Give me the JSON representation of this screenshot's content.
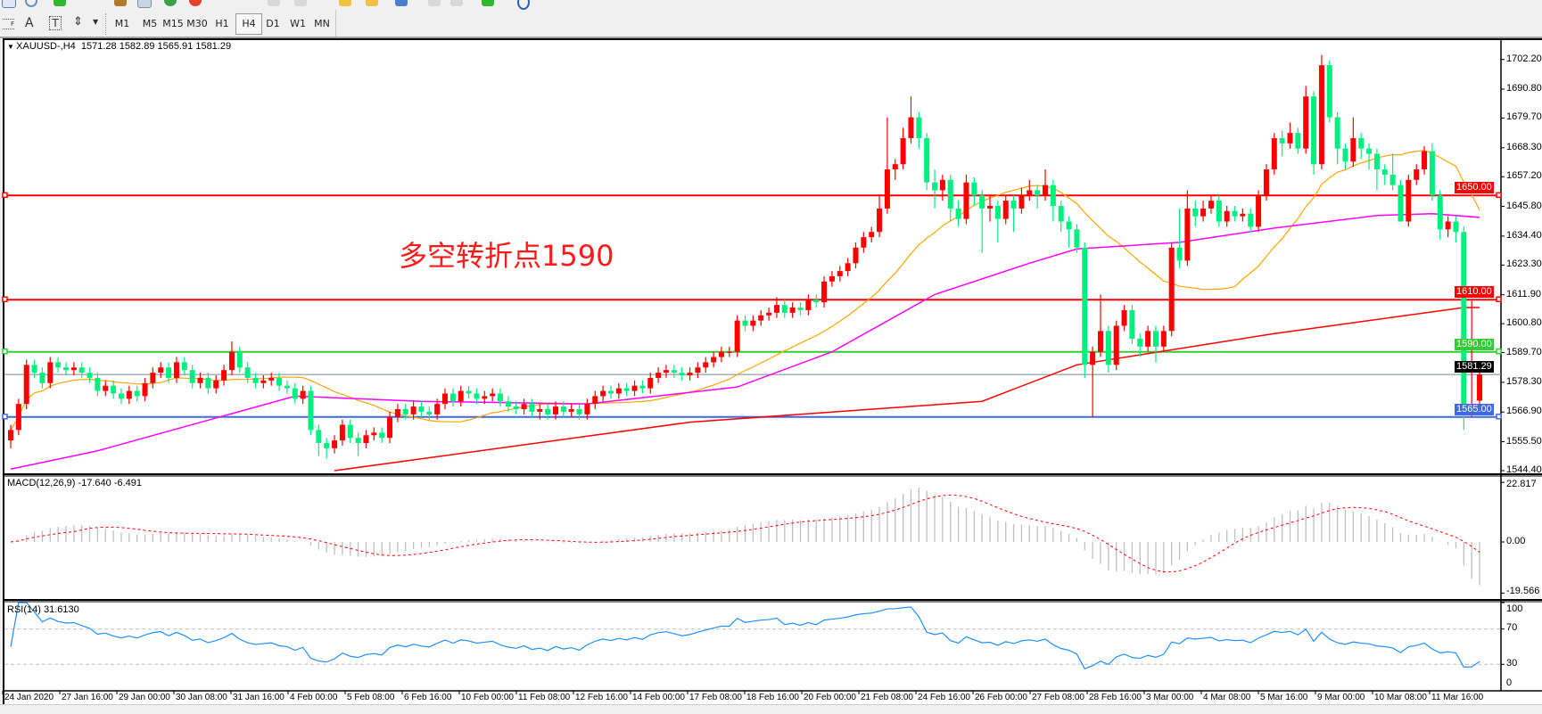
{
  "toolbar": {
    "timeframes": [
      "M1",
      "M5",
      "M15",
      "M30",
      "H1",
      "H4",
      "D1",
      "W1",
      "MN"
    ],
    "active_timeframe": "H4",
    "tools": [
      "fibo-icon",
      "text-icon",
      "text-label-icon",
      "arrows-icon"
    ],
    "tool_labels": {
      "text": "A",
      "label": "T"
    }
  },
  "chart": {
    "title": "XAUUSD-,H4  1571.28 1582.89 1565.91 1581.29",
    "annotation": "多空转折点1590",
    "colors": {
      "bull": "#ff0000",
      "bear": "#00f080",
      "ma_fast": "#ffa500",
      "ma_mid": "#ff00ff",
      "ma_slow": "#ff0000",
      "rsi": "#1e90ff",
      "macd_hist": "#c0c0c0",
      "macd_signal": "#ff0000"
    }
  },
  "chart_data": [
    {
      "type": "candlestick",
      "title": "XAUUSD-,H4",
      "ylim": [
        1544.4,
        1702.2
      ],
      "y_ticks": [
        "1702.20",
        "1690.80",
        "1679.70",
        "1668.30",
        "1657.20",
        "1645.80",
        "1634.40",
        "1623.30",
        "1611.90",
        "1600.80",
        "1589.70",
        "1578.30",
        "1566.90",
        "1555.50",
        "1544.40"
      ],
      "x_ticks": [
        "24 Jan 2020",
        "27 Jan 16:00",
        "29 Jan 00:00",
        "30 Jan 08:00",
        "31 Jan 16:00",
        "4 Feb 00:00",
        "5 Feb 08:00",
        "6 Feb 16:00",
        "10 Feb 00:00",
        "11 Feb 08:00",
        "12 Feb 16:00",
        "14 Feb 00:00",
        "17 Feb 08:00",
        "18 Feb 16:00",
        "20 Feb 00:00",
        "21 Feb 08:00",
        "24 Feb 16:00",
        "26 Feb 00:00",
        "27 Feb 08:00",
        "28 Feb 16:00",
        "3 Mar 00:00",
        "4 Mar 08:00",
        "5 Mar 16:00",
        "9 Mar 00:00",
        "10 Mar 08:00",
        "11 Mar 16:00"
      ],
      "last_price": {
        "value": 1581.29,
        "label": "1581.29"
      },
      "levels": [
        {
          "value": 1650,
          "label": "1650.00",
          "color": "#ff0000"
        },
        {
          "value": 1610,
          "label": "1610.00",
          "color": "#ff0000"
        },
        {
          "value": 1590,
          "label": "1590.00",
          "color": "#32cd32"
        },
        {
          "value": 1565,
          "label": "1565.00",
          "color": "#4169e1"
        }
      ],
      "ohlc": [
        [
          1556,
          1562,
          1553,
          1560
        ],
        [
          1560,
          1572,
          1558,
          1570
        ],
        [
          1570,
          1587,
          1568,
          1585
        ],
        [
          1585,
          1587,
          1580,
          1582
        ],
        [
          1582,
          1584,
          1576,
          1578
        ],
        [
          1578,
          1588,
          1576,
          1586
        ],
        [
          1586,
          1588,
          1582,
          1584
        ],
        [
          1584,
          1586,
          1581,
          1583
        ],
        [
          1583,
          1586,
          1581,
          1584
        ],
        [
          1584,
          1586,
          1580,
          1582
        ],
        [
          1582,
          1584,
          1578,
          1580
        ],
        [
          1580,
          1582,
          1573,
          1575
        ],
        [
          1575,
          1579,
          1573,
          1577
        ],
        [
          1577,
          1579,
          1572,
          1574
        ],
        [
          1574,
          1576,
          1570,
          1572
        ],
        [
          1572,
          1577,
          1570,
          1575
        ],
        [
          1575,
          1577,
          1571,
          1573
        ],
        [
          1573,
          1580,
          1571,
          1578
        ],
        [
          1578,
          1584,
          1576,
          1582
        ],
        [
          1582,
          1586,
          1580,
          1584
        ],
        [
          1584,
          1586,
          1578,
          1580
        ],
        [
          1580,
          1588,
          1578,
          1586
        ],
        [
          1586,
          1588,
          1581,
          1583
        ],
        [
          1583,
          1585,
          1576,
          1578
        ],
        [
          1578,
          1582,
          1576,
          1580
        ],
        [
          1580,
          1582,
          1574,
          1576
        ],
        [
          1576,
          1581,
          1574,
          1579
        ],
        [
          1579,
          1585,
          1577,
          1583
        ],
        [
          1583,
          1594,
          1581,
          1590
        ],
        [
          1590,
          1592,
          1582,
          1584
        ],
        [
          1584,
          1586,
          1578,
          1580
        ],
        [
          1580,
          1582,
          1576,
          1578
        ],
        [
          1578,
          1581,
          1576,
          1579
        ],
        [
          1579,
          1582,
          1577,
          1580
        ],
        [
          1580,
          1582,
          1575,
          1577
        ],
        [
          1577,
          1579,
          1574,
          1576
        ],
        [
          1576,
          1578,
          1570,
          1572
        ],
        [
          1572,
          1577,
          1570,
          1575
        ],
        [
          1575,
          1577,
          1558,
          1560
        ],
        [
          1560,
          1562,
          1550,
          1555
        ],
        [
          1555,
          1557,
          1549,
          1553
        ],
        [
          1553,
          1558,
          1551,
          1556
        ],
        [
          1556,
          1564,
          1554,
          1562
        ],
        [
          1562,
          1564,
          1555,
          1557
        ],
        [
          1557,
          1559,
          1550,
          1555
        ],
        [
          1555,
          1560,
          1553,
          1558
        ],
        [
          1558,
          1561,
          1556,
          1559
        ],
        [
          1559,
          1561,
          1555,
          1557
        ],
        [
          1557,
          1567,
          1555,
          1565
        ],
        [
          1565,
          1570,
          1563,
          1568
        ],
        [
          1568,
          1570,
          1564,
          1566
        ],
        [
          1566,
          1571,
          1564,
          1569
        ],
        [
          1569,
          1571,
          1565,
          1567
        ],
        [
          1567,
          1569,
          1564,
          1566
        ],
        [
          1566,
          1572,
          1564,
          1570
        ],
        [
          1570,
          1576,
          1568,
          1574
        ],
        [
          1574,
          1576,
          1569,
          1571
        ],
        [
          1571,
          1577,
          1569,
          1575
        ],
        [
          1575,
          1577,
          1572,
          1574
        ],
        [
          1574,
          1576,
          1570,
          1572
        ],
        [
          1572,
          1575,
          1570,
          1573
        ],
        [
          1573,
          1576,
          1571,
          1574
        ],
        [
          1574,
          1576,
          1569,
          1571
        ],
        [
          1571,
          1573,
          1567,
          1569
        ],
        [
          1569,
          1571,
          1566,
          1568
        ],
        [
          1568,
          1572,
          1566,
          1570
        ],
        [
          1570,
          1572,
          1565,
          1567
        ],
        [
          1567,
          1570,
          1564,
          1568
        ],
        [
          1568,
          1570,
          1564,
          1566
        ],
        [
          1566,
          1571,
          1564,
          1569
        ],
        [
          1569,
          1571,
          1565,
          1567
        ],
        [
          1567,
          1570,
          1565,
          1568
        ],
        [
          1568,
          1570,
          1564,
          1566
        ],
        [
          1566,
          1572,
          1564,
          1570
        ],
        [
          1570,
          1575,
          1568,
          1573
        ],
        [
          1573,
          1577,
          1571,
          1575
        ],
        [
          1575,
          1577,
          1572,
          1574
        ],
        [
          1574,
          1578,
          1572,
          1576
        ],
        [
          1576,
          1578,
          1573,
          1575
        ],
        [
          1575,
          1579,
          1573,
          1577
        ],
        [
          1577,
          1579,
          1574,
          1576
        ],
        [
          1576,
          1582,
          1574,
          1580
        ],
        [
          1580,
          1584,
          1578,
          1582
        ],
        [
          1582,
          1585,
          1580,
          1583
        ],
        [
          1583,
          1585,
          1580,
          1582
        ],
        [
          1582,
          1584,
          1579,
          1581
        ],
        [
          1581,
          1584,
          1579,
          1582
        ],
        [
          1582,
          1586,
          1580,
          1584
        ],
        [
          1584,
          1588,
          1582,
          1586
        ],
        [
          1586,
          1590,
          1584,
          1588
        ],
        [
          1588,
          1592,
          1586,
          1590
        ],
        [
          1590,
          1592,
          1588,
          1590
        ],
        [
          1590,
          1604,
          1588,
          1602
        ],
        [
          1602,
          1604,
          1598,
          1600
        ],
        [
          1600,
          1604,
          1598,
          1602
        ],
        [
          1602,
          1606,
          1600,
          1604
        ],
        [
          1604,
          1607,
          1602,
          1605
        ],
        [
          1605,
          1611,
          1603,
          1608
        ],
        [
          1608,
          1610,
          1603,
          1605
        ],
        [
          1605,
          1609,
          1603,
          1607
        ],
        [
          1607,
          1609,
          1604,
          1606
        ],
        [
          1606,
          1612,
          1604,
          1610
        ],
        [
          1610,
          1612,
          1607,
          1609
        ],
        [
          1609,
          1619,
          1607,
          1617
        ],
        [
          1617,
          1621,
          1615,
          1619
        ],
        [
          1619,
          1623,
          1617,
          1621
        ],
        [
          1621,
          1626,
          1619,
          1624
        ],
        [
          1624,
          1632,
          1622,
          1630
        ],
        [
          1630,
          1636,
          1628,
          1634
        ],
        [
          1634,
          1638,
          1632,
          1636
        ],
        [
          1636,
          1650,
          1634,
          1645
        ],
        [
          1645,
          1680,
          1643,
          1660
        ],
        [
          1660,
          1664,
          1656,
          1662
        ],
        [
          1662,
          1676,
          1660,
          1672
        ],
        [
          1672,
          1688,
          1670,
          1680
        ],
        [
          1680,
          1682,
          1668,
          1672
        ],
        [
          1672,
          1674,
          1652,
          1655
        ],
        [
          1655,
          1660,
          1645,
          1652
        ],
        [
          1652,
          1658,
          1648,
          1656
        ],
        [
          1656,
          1658,
          1640,
          1645
        ],
        [
          1645,
          1648,
          1638,
          1641
        ],
        [
          1641,
          1658,
          1639,
          1655
        ],
        [
          1655,
          1657,
          1646,
          1650
        ],
        [
          1650,
          1652,
          1628,
          1645
        ],
        [
          1645,
          1650,
          1640,
          1646
        ],
        [
          1646,
          1648,
          1632,
          1641
        ],
        [
          1641,
          1650,
          1639,
          1648
        ],
        [
          1648,
          1650,
          1636,
          1645
        ],
        [
          1645,
          1653,
          1643,
          1650
        ],
        [
          1650,
          1656,
          1648,
          1652
        ],
        [
          1652,
          1654,
          1645,
          1650
        ],
        [
          1650,
          1660,
          1648,
          1654
        ],
        [
          1654,
          1656,
          1640,
          1646
        ],
        [
          1646,
          1648,
          1636,
          1640
        ],
        [
          1640,
          1642,
          1630,
          1637
        ],
        [
          1637,
          1639,
          1628,
          1630
        ],
        [
          1630,
          1632,
          1580,
          1585
        ],
        [
          1585,
          1592,
          1565,
          1590
        ],
        [
          1590,
          1612,
          1588,
          1598
        ],
        [
          1598,
          1600,
          1582,
          1585
        ],
        [
          1585,
          1602,
          1583,
          1600
        ],
        [
          1600,
          1608,
          1598,
          1606
        ],
        [
          1606,
          1608,
          1593,
          1595
        ],
        [
          1595,
          1597,
          1588,
          1592
        ],
        [
          1592,
          1600,
          1590,
          1598
        ],
        [
          1598,
          1600,
          1586,
          1592
        ],
        [
          1592,
          1600,
          1590,
          1598
        ],
        [
          1598,
          1632,
          1596,
          1630
        ],
        [
          1630,
          1645,
          1622,
          1625
        ],
        [
          1625,
          1652,
          1623,
          1645
        ],
        [
          1645,
          1648,
          1638,
          1642
        ],
        [
          1642,
          1648,
          1640,
          1645
        ],
        [
          1645,
          1650,
          1643,
          1648
        ],
        [
          1648,
          1650,
          1638,
          1640
        ],
        [
          1640,
          1646,
          1638,
          1644
        ],
        [
          1644,
          1646,
          1640,
          1642
        ],
        [
          1642,
          1645,
          1640,
          1643
        ],
        [
          1643,
          1645,
          1636,
          1638
        ],
        [
          1638,
          1652,
          1636,
          1650
        ],
        [
          1650,
          1662,
          1648,
          1660
        ],
        [
          1660,
          1674,
          1658,
          1672
        ],
        [
          1672,
          1675,
          1665,
          1670
        ],
        [
          1670,
          1678,
          1668,
          1674
        ],
        [
          1674,
          1676,
          1666,
          1668
        ],
        [
          1668,
          1692,
          1666,
          1688
        ],
        [
          1688,
          1690,
          1658,
          1662
        ],
        [
          1662,
          1704,
          1660,
          1700
        ],
        [
          1700,
          1702,
          1678,
          1680
        ],
        [
          1680,
          1682,
          1662,
          1668
        ],
        [
          1668,
          1670,
          1660,
          1663
        ],
        [
          1663,
          1680,
          1661,
          1672
        ],
        [
          1672,
          1674,
          1664,
          1668
        ],
        [
          1668,
          1670,
          1660,
          1666
        ],
        [
          1666,
          1668,
          1652,
          1660
        ],
        [
          1660,
          1662,
          1654,
          1658
        ],
        [
          1658,
          1666,
          1652,
          1654
        ],
        [
          1654,
          1656,
          1640,
          1640
        ],
        [
          1640,
          1658,
          1638,
          1656
        ],
        [
          1656,
          1662,
          1654,
          1660
        ],
        [
          1660,
          1669,
          1658,
          1667
        ],
        [
          1667,
          1670,
          1648,
          1650
        ],
        [
          1650,
          1652,
          1633,
          1637
        ],
        [
          1637,
          1642,
          1634,
          1640
        ],
        [
          1640,
          1642,
          1632,
          1636
        ],
        [
          1636,
          1638,
          1560,
          1566
        ],
        [
          1566,
          1610,
          1565,
          1566.5
        ],
        [
          1571.28,
          1582.89,
          1565.91,
          1581.29
        ]
      ],
      "ma_mid": [
        [
          0,
          1545
        ],
        [
          11,
          1552
        ],
        [
          36,
          1573
        ],
        [
          52,
          1571
        ],
        [
          73,
          1570
        ],
        [
          92,
          1576.5
        ],
        [
          104,
          1590
        ],
        [
          117,
          1612
        ],
        [
          129,
          1624
        ],
        [
          135,
          1629.5
        ],
        [
          148,
          1632
        ],
        [
          160,
          1637.5
        ],
        [
          173,
          1642.3
        ],
        [
          180,
          1643
        ],
        [
          186,
          1641.6
        ]
      ],
      "ma_slow": [
        [
          41,
          1544.4
        ],
        [
          86,
          1563
        ],
        [
          123,
          1571
        ],
        [
          135,
          1585
        ],
        [
          160,
          1597
        ],
        [
          184,
          1607
        ],
        [
          186,
          1607
        ]
      ]
    },
    {
      "type": "bar",
      "title": "MACD(12,26,9) -17.640 -6.491",
      "ylim": [
        -19.566,
        22.817
      ],
      "y_ticks": [
        "22.817",
        "0.00",
        "-19.566"
      ]
    },
    {
      "type": "line",
      "title": "RSI(14) 31.6130",
      "ylim": [
        0,
        100
      ],
      "y_ticks": [
        "100",
        "70",
        "30",
        "0"
      ],
      "levels": [
        70,
        30
      ]
    }
  ]
}
